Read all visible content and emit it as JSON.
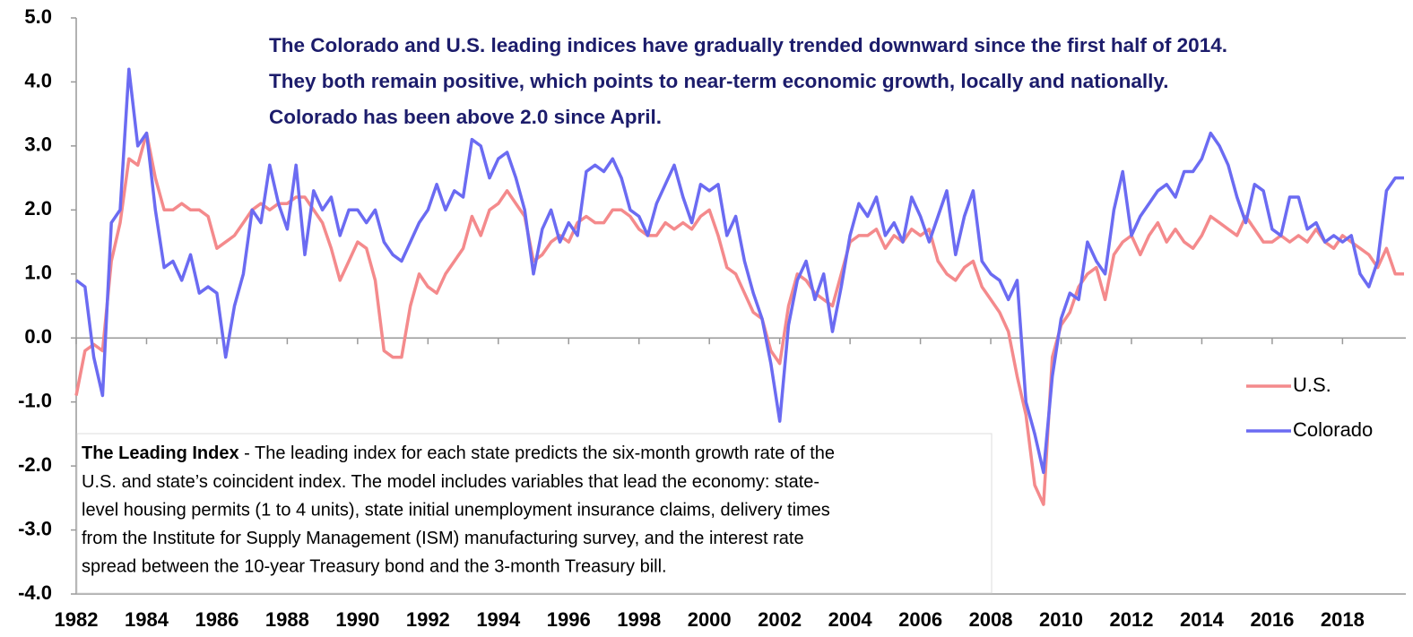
{
  "chart_data": {
    "type": "line",
    "annotations": {
      "headline": [
        "The Colorado and U.S. leading indices have gradually trended downward since the first half of 2014.",
        "They both remain positive, which points to near-term economic growth, locally and nationally.",
        "Colorado has been above 2.0 since April."
      ],
      "note_title": "The Leading Index",
      "note_lines": [
        " - The leading index for each state predicts the six-month growth rate of the",
        "U.S. and state’s coincident index. The model includes variables that lead the economy: state-",
        "level housing permits (1 to 4 units), state initial unemployment insurance claims, delivery times",
        "from the Institute for Supply Management (ISM) manufacturing survey, and the interest rate",
        "spread between the 10-year Treasury bond and the 3-month Treasury bill."
      ]
    },
    "x": [
      1982,
      1982.25,
      1982.5,
      1982.75,
      1983,
      1983.25,
      1983.5,
      1983.75,
      1984,
      1984.25,
      1984.5,
      1984.75,
      1985,
      1985.25,
      1985.5,
      1985.75,
      1986,
      1986.25,
      1986.5,
      1986.75,
      1987,
      1987.25,
      1987.5,
      1987.75,
      1988,
      1988.25,
      1988.5,
      1988.75,
      1989,
      1989.25,
      1989.5,
      1989.75,
      1990,
      1990.25,
      1990.5,
      1990.75,
      1991,
      1991.25,
      1991.5,
      1991.75,
      1992,
      1992.25,
      1992.5,
      1992.75,
      1993,
      1993.25,
      1993.5,
      1993.75,
      1994,
      1994.25,
      1994.5,
      1994.75,
      1995,
      1995.25,
      1995.5,
      1995.75,
      1996,
      1996.25,
      1996.5,
      1996.75,
      1997,
      1997.25,
      1997.5,
      1997.75,
      1998,
      1998.25,
      1998.5,
      1998.75,
      1999,
      1999.25,
      1999.5,
      1999.75,
      2000,
      2000.25,
      2000.5,
      2000.75,
      2001,
      2001.25,
      2001.5,
      2001.75,
      2002,
      2002.25,
      2002.5,
      2002.75,
      2003,
      2003.25,
      2003.5,
      2003.75,
      2004,
      2004.25,
      2004.5,
      2004.75,
      2005,
      2005.25,
      2005.5,
      2005.75,
      2006,
      2006.25,
      2006.5,
      2006.75,
      2007,
      2007.25,
      2007.5,
      2007.75,
      2008,
      2008.25,
      2008.5,
      2008.75,
      2009,
      2009.25,
      2009.5,
      2009.75,
      2010,
      2010.25,
      2010.5,
      2010.75,
      2011,
      2011.25,
      2011.5,
      2011.75,
      2012,
      2012.25,
      2012.5,
      2012.75,
      2013,
      2013.25,
      2013.5,
      2013.75,
      2014,
      2014.25,
      2014.5,
      2014.75,
      2015,
      2015.25,
      2015.5,
      2015.75,
      2016,
      2016.25,
      2016.5,
      2016.75,
      2017,
      2017.25,
      2017.5,
      2017.75,
      2018,
      2018.25,
      2018.5,
      2018.75,
      2019,
      2019.25,
      2019.5,
      2019.75
    ],
    "series": [
      {
        "name": "U.S.",
        "color": "#f48a8c",
        "values": [
          -0.9,
          -0.2,
          -0.1,
          -0.2,
          1.2,
          1.8,
          2.8,
          2.7,
          3.2,
          2.5,
          2.0,
          2.0,
          2.1,
          2.0,
          2.0,
          1.9,
          1.4,
          1.5,
          1.6,
          1.8,
          2.0,
          2.1,
          2.0,
          2.1,
          2.1,
          2.2,
          2.2,
          2.0,
          1.8,
          1.4,
          0.9,
          1.2,
          1.5,
          1.4,
          0.9,
          -0.2,
          -0.3,
          -0.3,
          0.5,
          1.0,
          0.8,
          0.7,
          1.0,
          1.2,
          1.4,
          1.9,
          1.6,
          2.0,
          2.1,
          2.3,
          2.1,
          1.9,
          1.2,
          1.3,
          1.5,
          1.6,
          1.5,
          1.8,
          1.9,
          1.8,
          1.8,
          2.0,
          2.0,
          1.9,
          1.7,
          1.6,
          1.6,
          1.8,
          1.7,
          1.8,
          1.7,
          1.9,
          2.0,
          1.6,
          1.1,
          1.0,
          0.7,
          0.4,
          0.3,
          -0.2,
          -0.4,
          0.5,
          1.0,
          0.9,
          0.7,
          0.6,
          0.5,
          1.0,
          1.5,
          1.6,
          1.6,
          1.7,
          1.4,
          1.6,
          1.5,
          1.7,
          1.6,
          1.7,
          1.2,
          1.0,
          0.9,
          1.1,
          1.2,
          0.8,
          0.6,
          0.4,
          0.1,
          -0.6,
          -1.2,
          -2.3,
          -2.6,
          -0.3,
          0.2,
          0.4,
          0.8,
          1.0,
          1.1,
          0.6,
          1.3,
          1.5,
          1.6,
          1.3,
          1.6,
          1.8,
          1.5,
          1.7,
          1.5,
          1.4,
          1.6,
          1.9,
          1.8,
          1.7,
          1.6,
          1.9,
          1.7,
          1.5,
          1.5,
          1.6,
          1.5,
          1.6,
          1.5,
          1.7,
          1.5,
          1.4,
          1.6,
          1.5,
          1.4,
          1.3,
          1.1,
          1.4,
          1.0,
          1.0
        ]
      },
      {
        "name": "Colorado",
        "color": "#6b6bf2",
        "values": [
          0.9,
          0.8,
          -0.3,
          -0.9,
          1.8,
          2.0,
          4.2,
          3.0,
          3.2,
          2.0,
          1.1,
          1.2,
          0.9,
          1.3,
          0.7,
          0.8,
          0.7,
          -0.3,
          0.5,
          1.0,
          2.0,
          1.8,
          2.7,
          2.1,
          1.7,
          2.7,
          1.3,
          2.3,
          2.0,
          2.2,
          1.6,
          2.0,
          2.0,
          1.8,
          2.0,
          1.5,
          1.3,
          1.2,
          1.5,
          1.8,
          2.0,
          2.4,
          2.0,
          2.3,
          2.2,
          3.1,
          3.0,
          2.5,
          2.8,
          2.9,
          2.5,
          2.0,
          1.0,
          1.7,
          2.0,
          1.5,
          1.8,
          1.6,
          2.6,
          2.7,
          2.6,
          2.8,
          2.5,
          2.0,
          1.9,
          1.6,
          2.1,
          2.4,
          2.7,
          2.2,
          1.8,
          2.4,
          2.3,
          2.4,
          1.6,
          1.9,
          1.2,
          0.7,
          0.3,
          -0.4,
          -1.3,
          0.2,
          0.9,
          1.2,
          0.6,
          1.0,
          0.1,
          0.8,
          1.6,
          2.1,
          1.9,
          2.2,
          1.6,
          1.8,
          1.5,
          2.2,
          1.9,
          1.5,
          1.9,
          2.3,
          1.3,
          1.9,
          2.3,
          1.2,
          1.0,
          0.9,
          0.6,
          0.9,
          -1.0,
          -1.5,
          -2.1,
          -0.6,
          0.3,
          0.7,
          0.6,
          1.5,
          1.2,
          1.0,
          2.0,
          2.6,
          1.6,
          1.9,
          2.1,
          2.3,
          2.4,
          2.2,
          2.6,
          2.6,
          2.8,
          3.2,
          3.0,
          2.7,
          2.2,
          1.8,
          2.4,
          2.3,
          1.7,
          1.6,
          2.2,
          2.2,
          1.7,
          1.8,
          1.5,
          1.6,
          1.5,
          1.6,
          1.0,
          0.8,
          1.2,
          2.3,
          2.5,
          2.5
        ]
      }
    ],
    "xlim": [
      1982,
      2019.8
    ],
    "xticks": [
      1982,
      1984,
      1986,
      1988,
      1990,
      1992,
      1994,
      1996,
      1998,
      2000,
      2002,
      2004,
      2006,
      2008,
      2010,
      2012,
      2014,
      2016,
      2018
    ],
    "ylim": [
      -4,
      5
    ],
    "yticks": [
      {
        "value": -4,
        "label": "-4.0"
      },
      {
        "value": -3,
        "label": "-3.0"
      },
      {
        "value": -2,
        "label": "-2.0"
      },
      {
        "value": -1,
        "label": "-1.0"
      },
      {
        "value": 0,
        "label": "0.0"
      },
      {
        "value": 1,
        "label": "1.0"
      },
      {
        "value": 2,
        "label": "2.0"
      },
      {
        "value": 3,
        "label": "3.0"
      },
      {
        "value": 4,
        "label": "4.0"
      },
      {
        "value": 5,
        "label": "5.0"
      }
    ],
    "legend": "right"
  }
}
